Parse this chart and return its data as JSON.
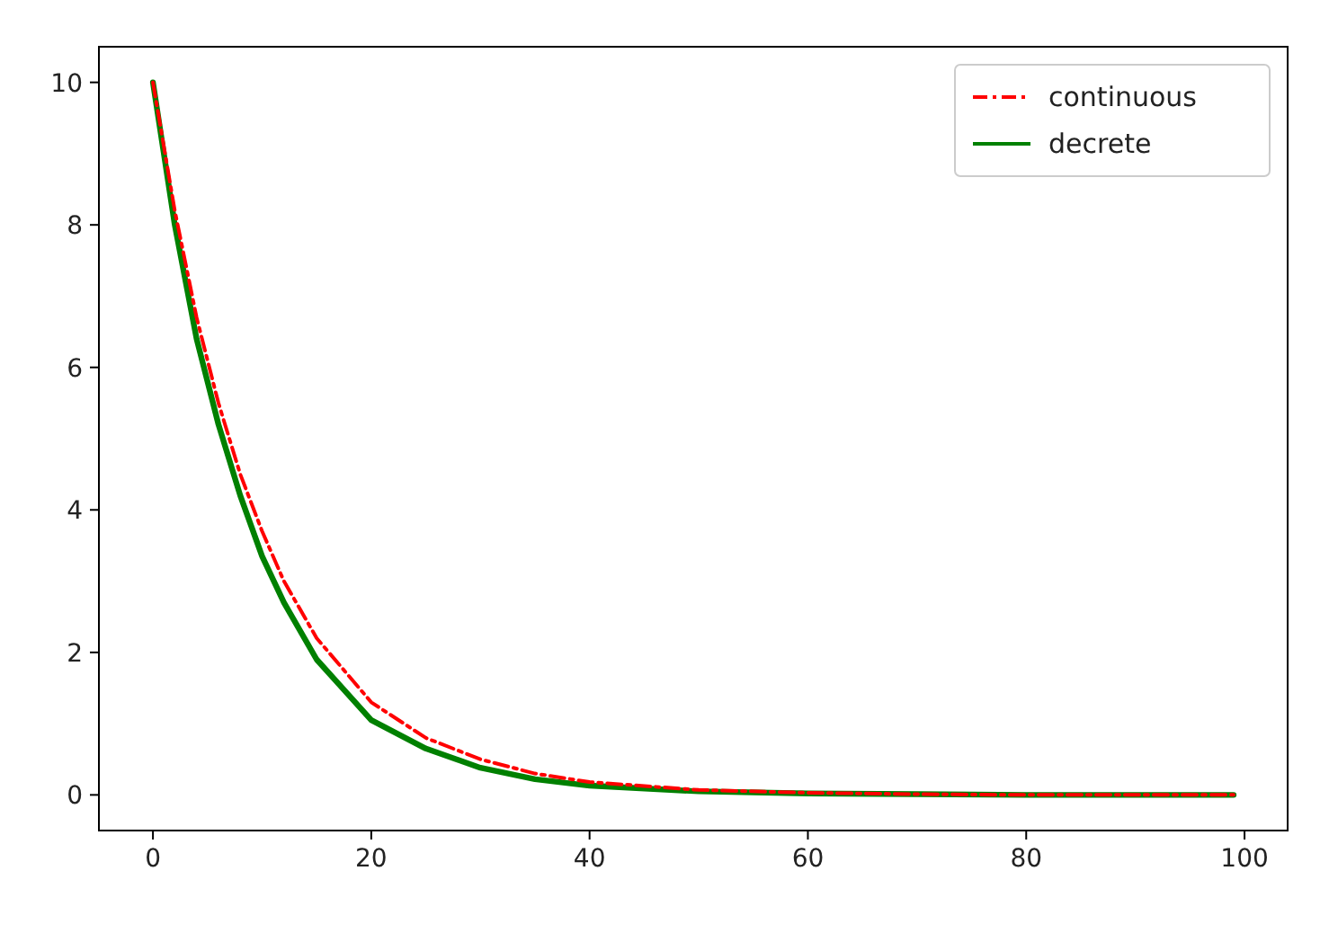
{
  "chart_data": {
    "type": "line",
    "xlim": [
      -4.95,
      103.95
    ],
    "ylim": [
      -0.5,
      10.5
    ],
    "xticks": [
      0,
      20,
      40,
      60,
      80,
      100
    ],
    "yticks": [
      0,
      2,
      4,
      6,
      8,
      10
    ],
    "legend": "top right",
    "grid": false,
    "series": [
      {
        "name": "continuous",
        "color": "#ff0000",
        "line_style": "dashdot",
        "x": [
          0,
          2,
          4,
          6,
          8,
          10,
          12,
          15,
          20,
          25,
          30,
          35,
          40,
          50,
          60,
          70,
          80,
          99
        ],
        "values": [
          10,
          8.2,
          6.7,
          5.5,
          4.5,
          3.7,
          3.0,
          2.2,
          1.3,
          0.8,
          0.5,
          0.3,
          0.18,
          0.07,
          0.03,
          0.01,
          0,
          0
        ]
      },
      {
        "name": "decrete",
        "color": "#008000",
        "line_style": "solid",
        "x": [
          0,
          2,
          4,
          6,
          8,
          10,
          12,
          15,
          20,
          25,
          30,
          35,
          40,
          50,
          60,
          70,
          80,
          99
        ],
        "values": [
          10,
          8.0,
          6.4,
          5.2,
          4.2,
          3.35,
          2.7,
          1.9,
          1.05,
          0.65,
          0.38,
          0.22,
          0.13,
          0.05,
          0.02,
          0.01,
          0,
          0
        ]
      }
    ]
  }
}
